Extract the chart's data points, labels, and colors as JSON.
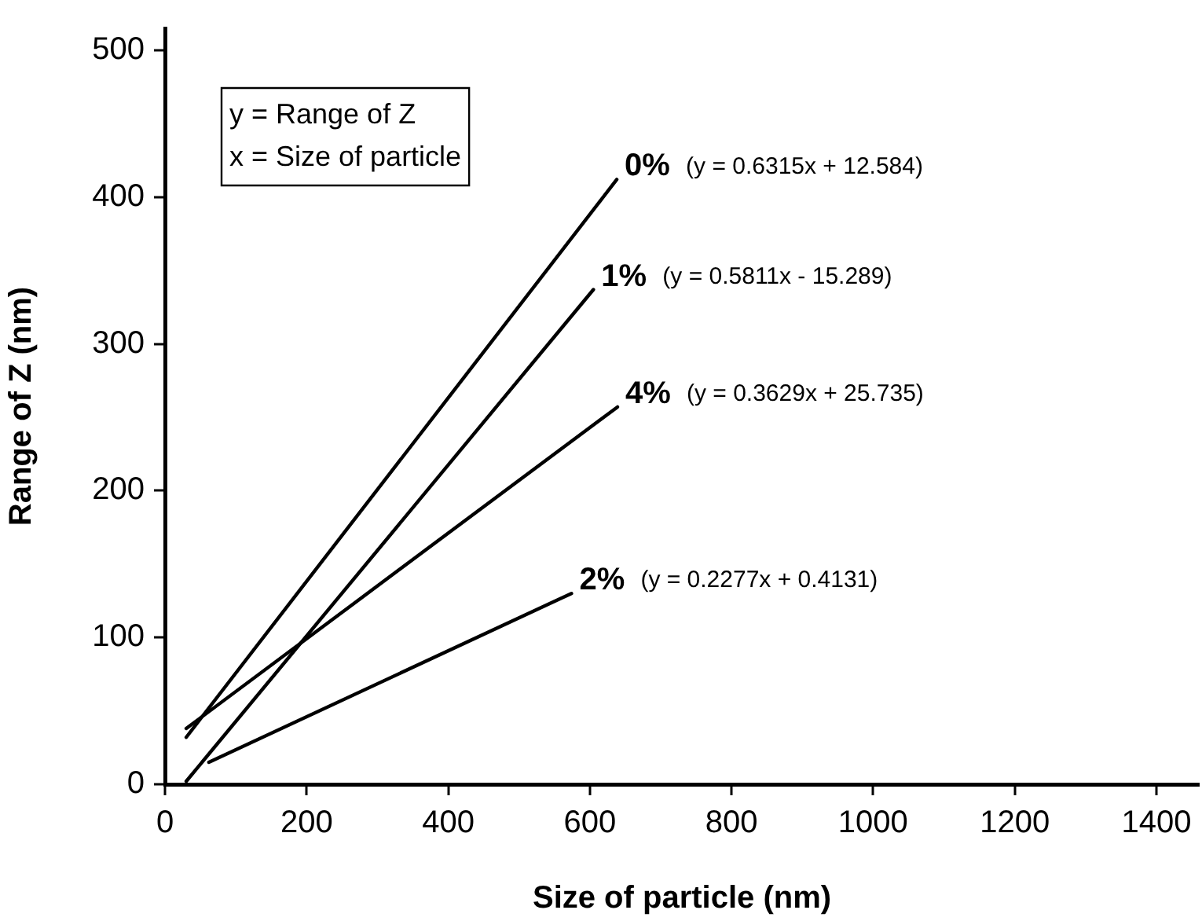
{
  "chart_data": {
    "type": "line",
    "xlabel": "Size of particle (nm)",
    "ylabel": "Range of Z (nm)",
    "xlim": [
      0,
      1460
    ],
    "xticks": [
      0,
      200,
      400,
      600,
      800,
      1000,
      1200,
      1400
    ],
    "ylim": [
      0,
      515
    ],
    "yticks": [
      0,
      100,
      200,
      300,
      400,
      500
    ],
    "grid": false,
    "legend": false,
    "marker": "none",
    "line_style": "solid",
    "series": [
      {
        "name": "0%",
        "color": "#000000",
        "x": [
          30,
          638
        ],
        "values": [
          32,
          412
        ]
      },
      {
        "name": "1%",
        "color": "#000000",
        "x": [
          30,
          605
        ],
        "values": [
          2,
          337
        ]
      },
      {
        "name": "4%",
        "color": "#000000",
        "x": [
          30,
          639
        ],
        "values": [
          38,
          257
        ]
      },
      {
        "name": "2%",
        "color": "#000000",
        "x": [
          62,
          574
        ],
        "values": [
          15,
          130
        ]
      }
    ],
    "annotations": [
      "y = Range of Z",
      "x = Size of particle",
      {
        "text": "(y = 0.6315x + 12.584)",
        "x": 638,
        "y": 412
      },
      {
        "text": "(y = 0.5811x - 15.289)",
        "x": 605,
        "y": 337
      },
      {
        "text": "(y = 0.3629x + 25.735)",
        "x": 639,
        "y": 257
      },
      {
        "text": "(y = 0.2277x + 0.4131)",
        "x": 574,
        "y": 130
      }
    ]
  }
}
